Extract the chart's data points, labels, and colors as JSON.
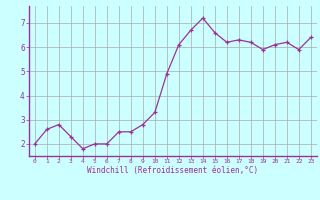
{
  "x": [
    0,
    1,
    2,
    3,
    4,
    5,
    6,
    7,
    8,
    9,
    10,
    11,
    12,
    13,
    14,
    15,
    16,
    17,
    18,
    19,
    20,
    21,
    22,
    23
  ],
  "y": [
    2.0,
    2.6,
    2.8,
    2.3,
    1.8,
    2.0,
    2.0,
    2.5,
    2.5,
    2.8,
    3.3,
    4.9,
    6.1,
    6.7,
    7.2,
    6.6,
    6.2,
    6.3,
    6.2,
    5.9,
    6.1,
    6.2,
    5.9,
    6.4
  ],
  "line_color": "#993399",
  "marker": "+",
  "bg_color": "#ccffff",
  "grid_color": "#aaaaaa",
  "xlabel": "Windchill (Refroidissement éolien,°C)",
  "ylim": [
    1.5,
    7.7
  ],
  "xlim": [
    -0.5,
    23.5
  ],
  "yticks": [
    2,
    3,
    4,
    5,
    6,
    7
  ],
  "xtick_labels": [
    "0",
    "1",
    "2",
    "3",
    "4",
    "5",
    "6",
    "7",
    "8",
    "9",
    "10",
    "11",
    "12",
    "13",
    "14",
    "15",
    "16",
    "17",
    "18",
    "19",
    "20",
    "21",
    "22",
    "23"
  ],
  "tick_color": "#993399",
  "font_family": "monospace"
}
